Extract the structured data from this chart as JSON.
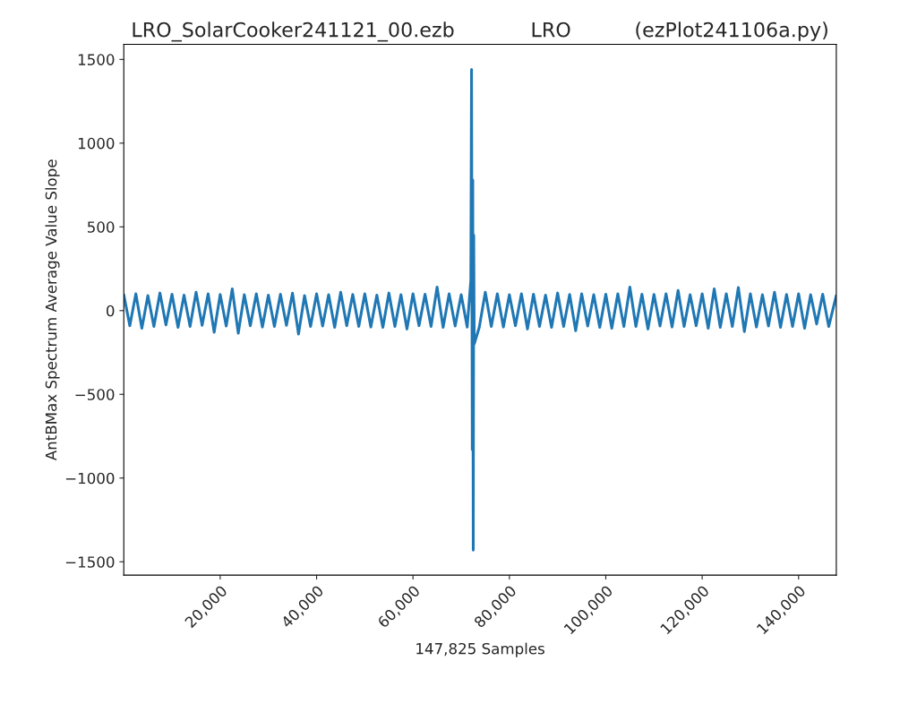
{
  "chart_data": {
    "type": "line",
    "title": "LRO_SolarCooker241121_00.ezb            LRO          (ezPlot241106a.py)",
    "xlabel": "147,825 Samples",
    "ylabel": "AntBMax Spectrum Average Value Slope",
    "x": [
      0,
      1250,
      2500,
      3750,
      5000,
      6250,
      7500,
      8750,
      10000,
      11250,
      12500,
      13750,
      15000,
      16250,
      17500,
      18750,
      20000,
      21250,
      22500,
      23750,
      25000,
      26250,
      27500,
      28750,
      30000,
      31250,
      32500,
      33750,
      35000,
      36250,
      37500,
      38750,
      40000,
      41250,
      42500,
      43750,
      45000,
      46250,
      47500,
      48750,
      50000,
      51250,
      52500,
      53750,
      55000,
      56250,
      57500,
      58750,
      60000,
      61250,
      62500,
      63750,
      65000,
      66250,
      67500,
      68750,
      70000,
      71250,
      72000,
      72150,
      72300,
      72400,
      72500,
      72600,
      72700,
      73750,
      75000,
      76250,
      77500,
      78750,
      80000,
      81250,
      82500,
      83750,
      85000,
      86250,
      87500,
      88750,
      90000,
      91250,
      92500,
      93750,
      95000,
      96250,
      97500,
      98750,
      100000,
      101250,
      102500,
      103750,
      105000,
      106250,
      107500,
      108750,
      110000,
      111250,
      112500,
      113750,
      115000,
      116250,
      117500,
      118750,
      120000,
      121250,
      122500,
      123750,
      125000,
      126250,
      127500,
      128750,
      130000,
      131250,
      132500,
      133750,
      135000,
      136250,
      137500,
      138750,
      140000,
      141250,
      142500,
      143750,
      145000,
      146250,
      147825
    ],
    "series": [
      {
        "color": "#1f77b4",
        "values": [
          95,
          -90,
          100,
          -105,
          90,
          -95,
          105,
          -85,
          98,
          -100,
          92,
          -95,
          110,
          -88,
          100,
          -130,
          96,
          -92,
          130,
          -135,
          95,
          -90,
          100,
          -98,
          92,
          -95,
          98,
          -88,
          104,
          -140,
          90,
          -95,
          100,
          -92,
          95,
          -100,
          110,
          -90,
          96,
          -94,
          100,
          -98,
          92,
          -100,
          105,
          -95,
          95,
          -110,
          100,
          -90,
          98,
          -95,
          140,
          -100,
          100,
          -92,
          95,
          -98,
          180,
          1440,
          -830,
          780,
          -1430,
          450,
          -200,
          -100,
          110,
          -95,
          100,
          -98,
          95,
          -90,
          100,
          -110,
          98,
          -95,
          92,
          -100,
          105,
          -95,
          96,
          -120,
          100,
          -92,
          95,
          -100,
          98,
          -105,
          100,
          -95,
          140,
          -95,
          98,
          -110,
          96,
          -92,
          100,
          -98,
          120,
          -95,
          95,
          -90,
          100,
          -105,
          130,
          -100,
          100,
          -95,
          138,
          -125,
          100,
          -98,
          95,
          -92,
          110,
          -100,
          96,
          -95,
          100,
          -105,
          95,
          -80,
          98,
          -95,
          90
        ]
      }
    ],
    "xlim": [
      0,
      147825
    ],
    "xticks": [
      {
        "value": 20000,
        "label": "20,000"
      },
      {
        "value": 40000,
        "label": "40,000"
      },
      {
        "value": 60000,
        "label": "60,000"
      },
      {
        "value": 80000,
        "label": "80,000"
      },
      {
        "value": 100000,
        "label": "100,000"
      },
      {
        "value": 120000,
        "label": "120,000"
      },
      {
        "value": 140000,
        "label": "140,000"
      }
    ],
    "ylim": [
      -1580,
      1590
    ],
    "yticks": [
      {
        "value": -1500,
        "label": "−1500"
      },
      {
        "value": -1000,
        "label": "−1000"
      },
      {
        "value": -500,
        "label": "−500"
      },
      0,
      500,
      1000,
      1500
    ],
    "grid": false,
    "legend": false
  }
}
